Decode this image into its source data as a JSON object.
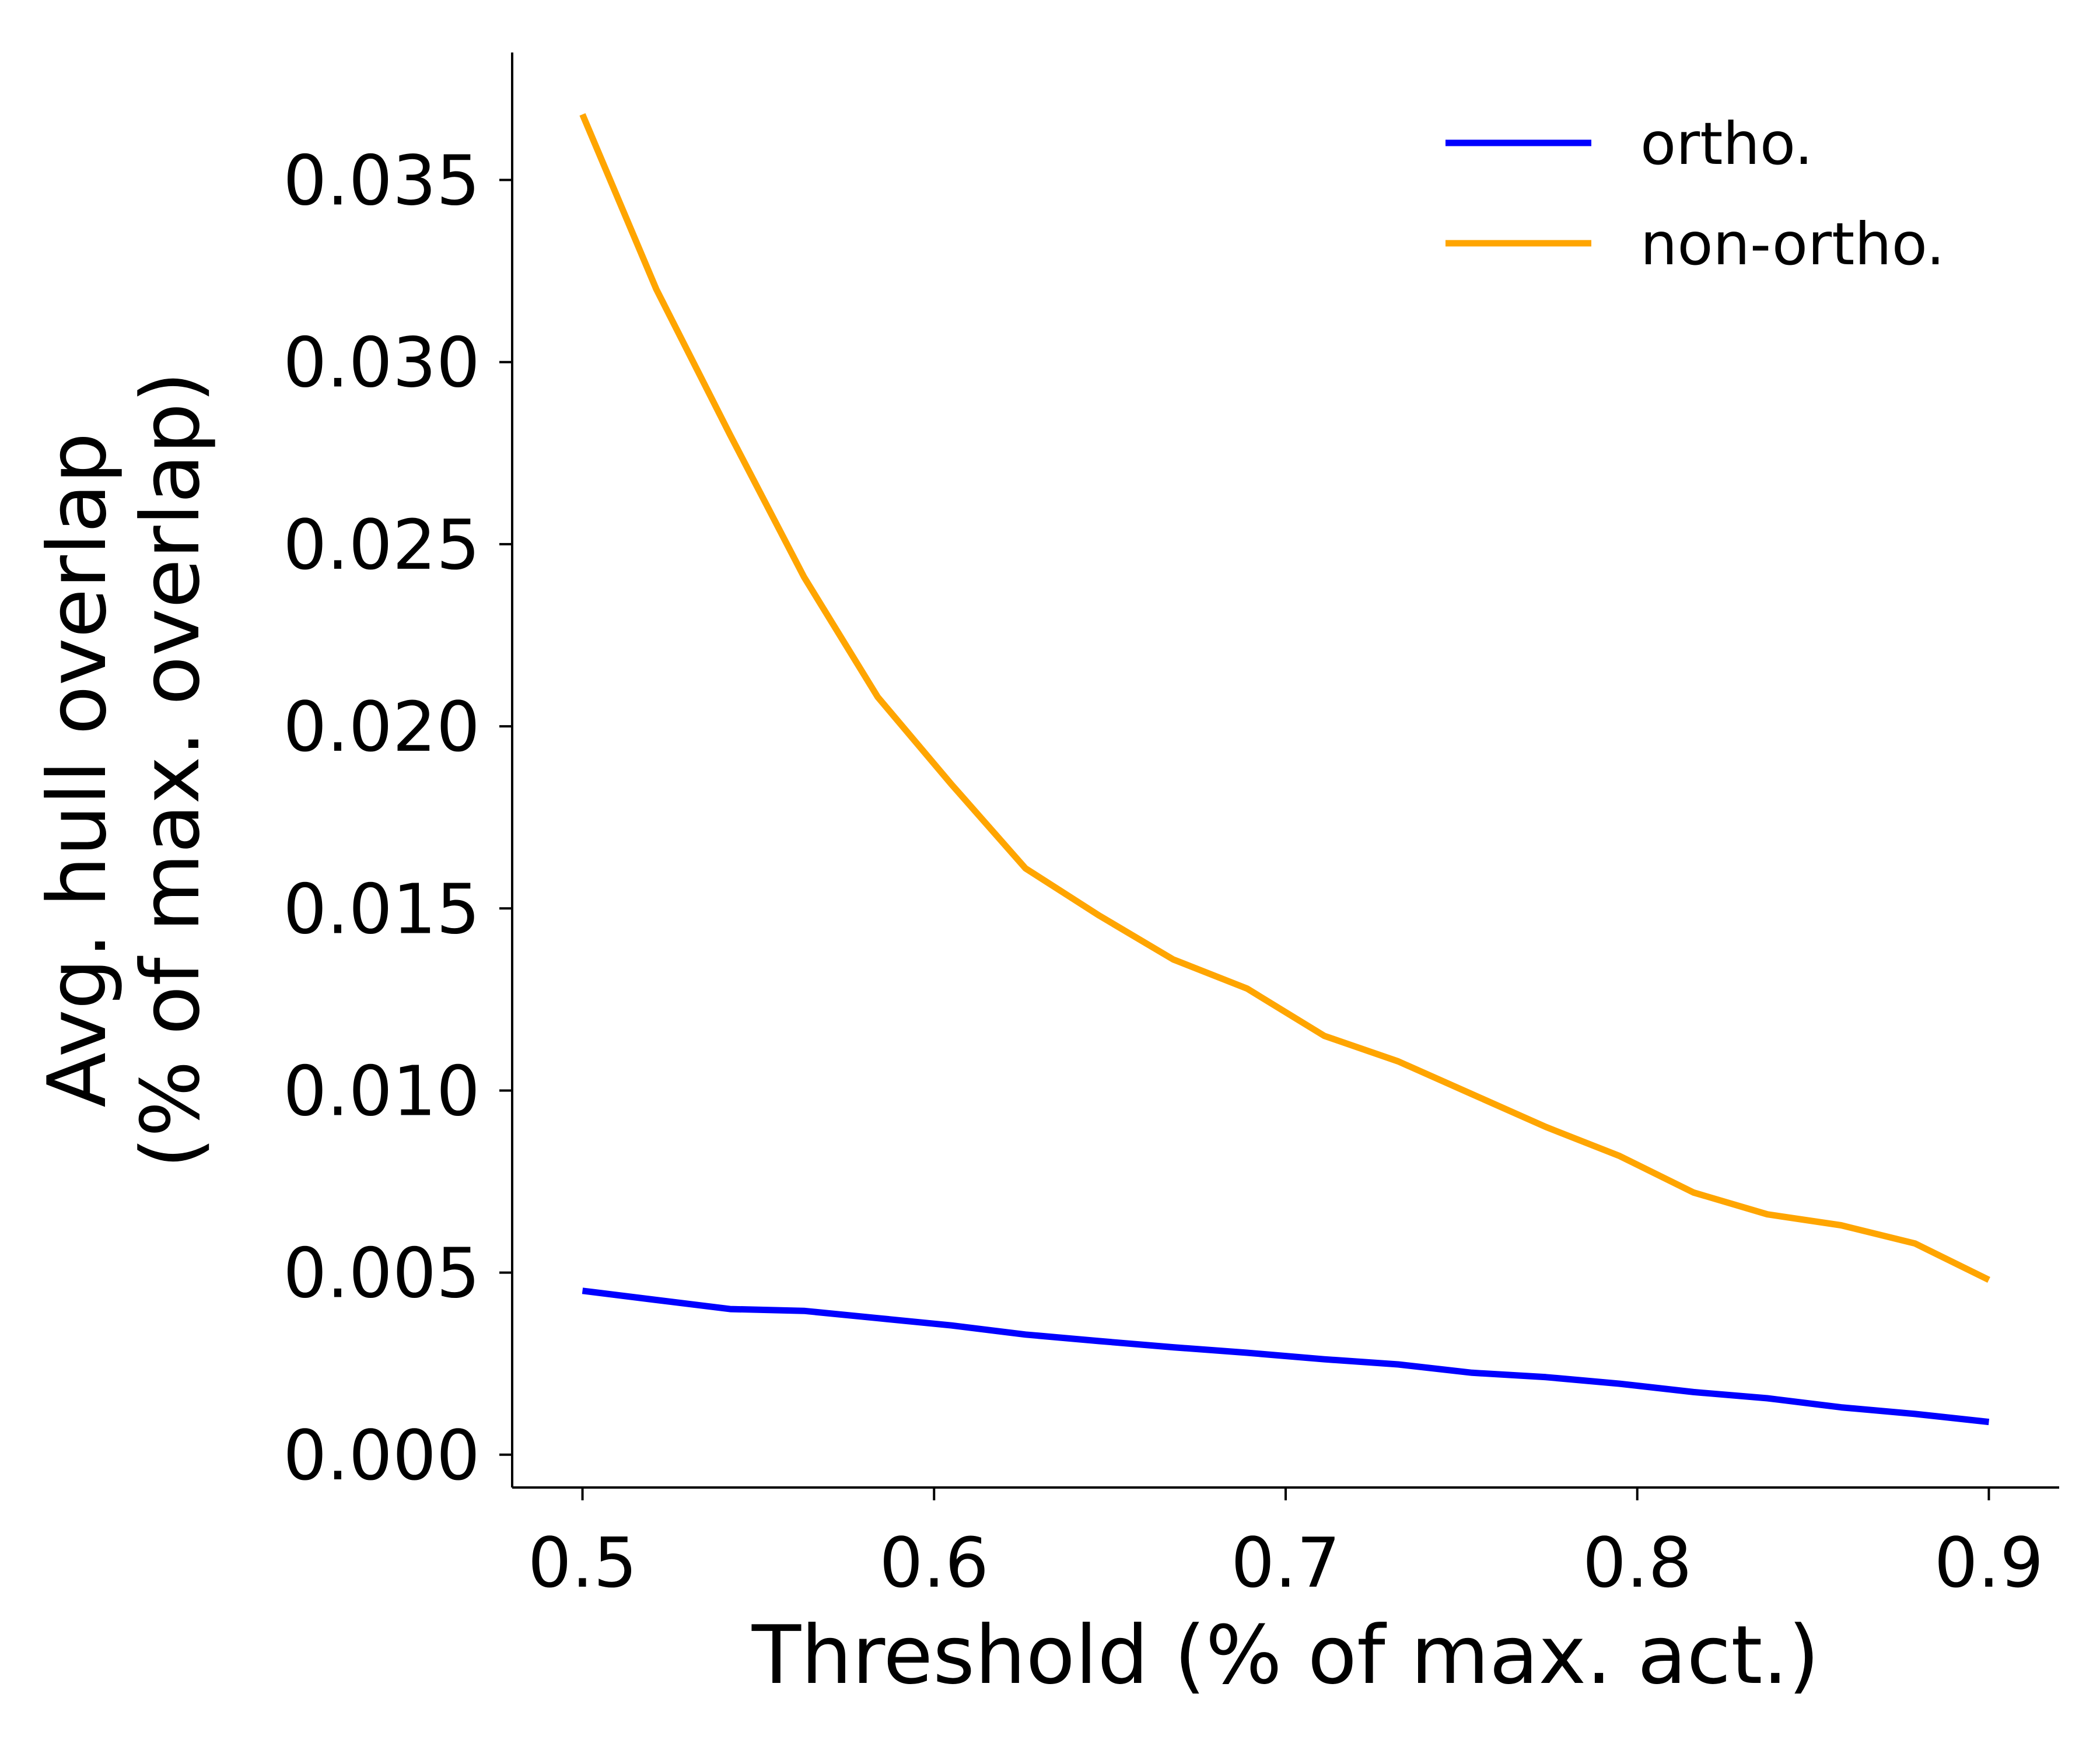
{
  "chart_data": {
    "type": "line",
    "title": "",
    "xlabel": "Threshold (% of max. act.)",
    "ylabel_lines": [
      "Avg. hull overlap",
      "(% of max. overlap)"
    ],
    "xlim": [
      0.48,
      0.92
    ],
    "ylim": [
      -0.0009,
      0.0385
    ],
    "xticks": [
      0.5,
      0.6,
      0.7,
      0.8,
      0.9
    ],
    "xtick_labels": [
      "0.5",
      "0.6",
      "0.7",
      "0.8",
      "0.9"
    ],
    "yticks": [
      0.0,
      0.005,
      0.01,
      0.015,
      0.02,
      0.025,
      0.03,
      0.035
    ],
    "ytick_labels": [
      "0.000",
      "0.005",
      "0.010",
      "0.015",
      "0.020",
      "0.025",
      "0.030",
      "0.035"
    ],
    "grid": false,
    "legend_position": "top-right",
    "x": [
      0.5,
      0.521,
      0.542,
      0.563,
      0.584,
      0.605,
      0.626,
      0.647,
      0.668,
      0.689,
      0.711,
      0.732,
      0.753,
      0.774,
      0.795,
      0.816,
      0.837,
      0.858,
      0.879,
      0.9
    ],
    "series": [
      {
        "name": "ortho.",
        "color": "#0000ff",
        "values": [
          0.0045,
          0.00425,
          0.004,
          0.00395,
          0.00375,
          0.00355,
          0.0033,
          0.00312,
          0.00295,
          0.0028,
          0.00262,
          0.00248,
          0.00225,
          0.00213,
          0.00195,
          0.00172,
          0.00155,
          0.0013,
          0.00112,
          0.0009
        ]
      },
      {
        "name": "non-ortho.",
        "color": "#ffa500",
        "values": [
          0.0368,
          0.032,
          0.028,
          0.0241,
          0.0208,
          0.0184,
          0.0161,
          0.0148,
          0.0136,
          0.0128,
          0.0115,
          0.0108,
          0.0099,
          0.009,
          0.0082,
          0.0072,
          0.0066,
          0.0063,
          0.0058,
          0.0048
        ]
      }
    ]
  }
}
